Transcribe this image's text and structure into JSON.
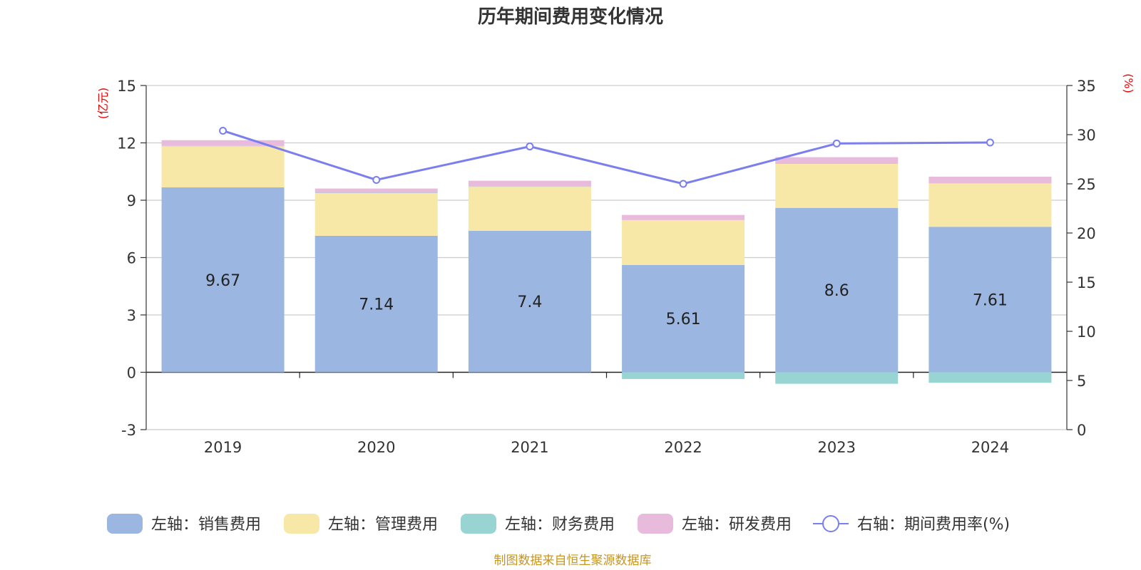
{
  "chart_data": {
    "type": "bar",
    "title": "历年期间费用变化情况",
    "categories": [
      "2019",
      "2020",
      "2021",
      "2022",
      "2023",
      "2024"
    ],
    "left_axis": {
      "unit": "(亿元)",
      "ylim": [
        -3,
        15
      ],
      "ticks": [
        "-3",
        "0",
        "3",
        "6",
        "9",
        "12",
        "15"
      ]
    },
    "right_axis": {
      "unit": "(%)",
      "ylim": [
        0,
        35
      ],
      "ticks": [
        "0",
        "5",
        "10",
        "15",
        "20",
        "25",
        "30",
        "35"
      ]
    },
    "series": [
      {
        "name": "左轴：销售费用",
        "axis": "left",
        "kind": "bar",
        "color": "#9bb6e0",
        "values": [
          9.67,
          7.14,
          7.4,
          5.61,
          8.6,
          7.61
        ],
        "labels": [
          "9.67",
          "7.14",
          "7.4",
          "5.61",
          "8.6",
          "7.61"
        ]
      },
      {
        "name": "左轴：管理费用",
        "axis": "left",
        "kind": "bar",
        "color": "#f8e8a8",
        "values": [
          2.15,
          2.23,
          2.3,
          2.35,
          2.3,
          2.27
        ]
      },
      {
        "name": "左轴：财务费用",
        "axis": "left",
        "kind": "bar",
        "color": "#97d4d2",
        "values": [
          0.02,
          0.02,
          0.02,
          -0.35,
          -0.6,
          -0.55
        ]
      },
      {
        "name": "左轴：研发费用",
        "axis": "left",
        "kind": "bar",
        "color": "#e8bbdc",
        "values": [
          0.3,
          0.22,
          0.3,
          0.27,
          0.35,
          0.35
        ]
      },
      {
        "name": "右轴：期间费用率(%)",
        "axis": "right",
        "kind": "line",
        "color": "#7b7fee",
        "values": [
          30.4,
          25.4,
          28.8,
          25.0,
          29.1,
          29.2
        ]
      }
    ],
    "legend_position": "bottom",
    "grid": true
  },
  "source_note": "制图数据来自恒生聚源数据库",
  "colors": {
    "axis_unit": "#ee0000",
    "source": "#c8951d",
    "grid": "#cccccc"
  }
}
